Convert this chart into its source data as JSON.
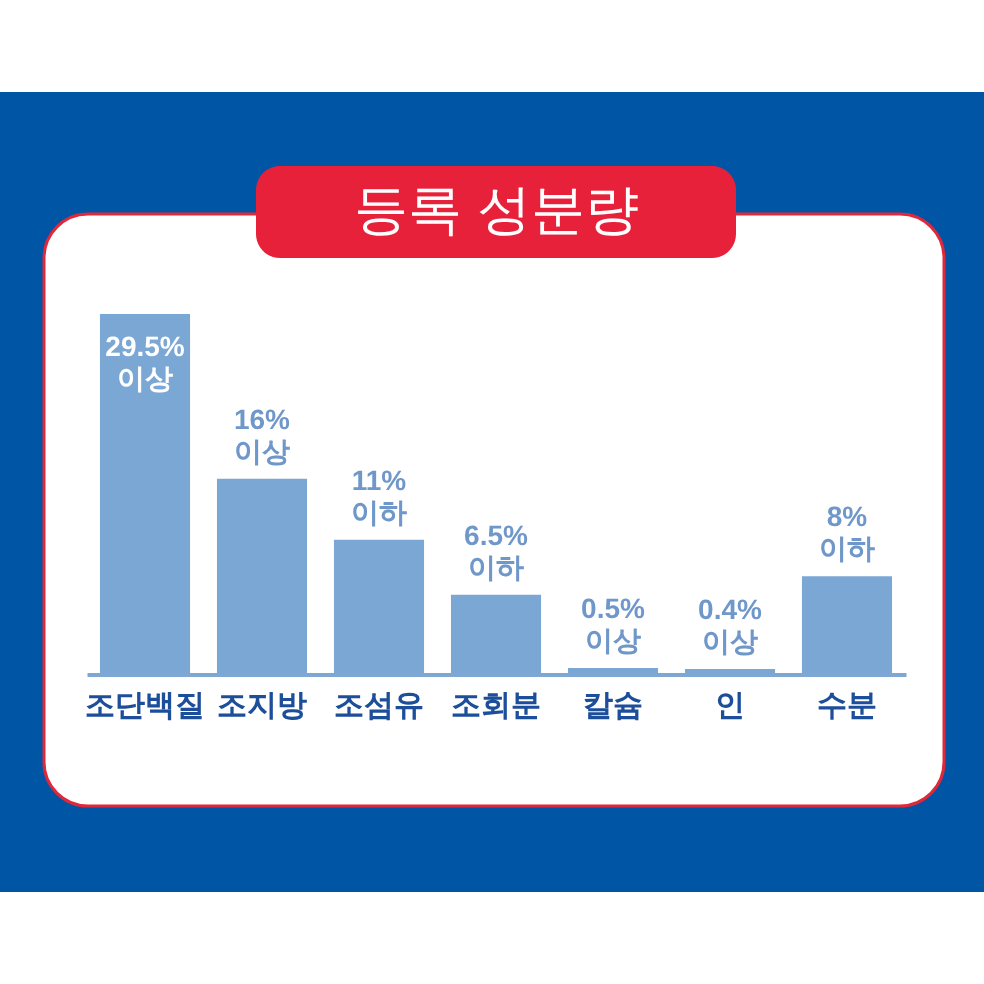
{
  "chart_data": {
    "type": "bar",
    "title": "등록 성분량",
    "categories": [
      "조단백질",
      "조지방",
      "조섬유",
      "조회분",
      "칼슘",
      "인",
      "수분"
    ],
    "values": [
      29.5,
      16,
      11,
      6.5,
      0.5,
      0.4,
      8
    ],
    "color": "#7ba7d4",
    "value_labels": [
      "29.5%\n이상",
      "16%\n이상",
      "11%\n이하",
      "6.5%\n이하",
      "0.5%\n이상",
      "0.4%\n이상",
      "8%\n이하"
    ],
    "tick_labels": "x"
  }
}
